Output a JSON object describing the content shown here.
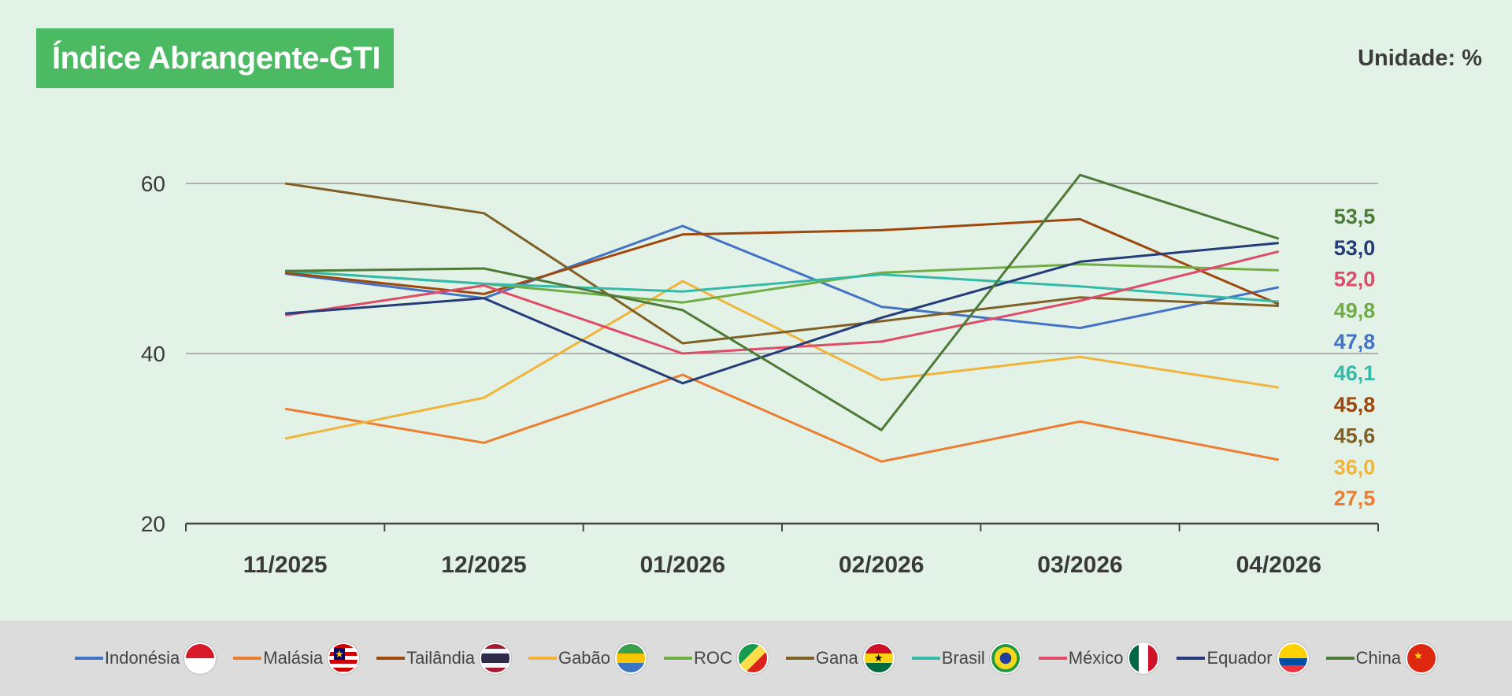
{
  "header": {
    "title": "Índice Abrangente-GTI",
    "unit": "Unidade: %"
  },
  "colors": {
    "title_bg": "#4cba62",
    "background": "#e3f2e6",
    "legend_bg": "#dcdcdc"
  },
  "chart_data": {
    "type": "line",
    "categories": [
      "11/2025",
      "12/2025",
      "01/2026",
      "02/2026",
      "03/2026",
      "04/2026"
    ],
    "ylim": [
      20,
      60
    ],
    "yticks": [
      20,
      40,
      60
    ],
    "grid": true,
    "legend_position": "bottom",
    "series": [
      {
        "name": "Indonésia",
        "color": "#4472c4",
        "values": [
          49.4,
          46.5,
          55.0,
          45.5,
          43.0,
          47.8
        ],
        "end_label": "47,8",
        "flag": "indonesia-flag"
      },
      {
        "name": "Malásia",
        "color": "#ed7d31",
        "values": [
          33.5,
          29.5,
          37.5,
          27.3,
          32.0,
          27.5
        ],
        "end_label": "27,5",
        "flag": "malaysia-flag"
      },
      {
        "name": "Tailândia",
        "color": "#9e480e",
        "values": [
          49.5,
          47.0,
          54.0,
          54.5,
          55.8,
          45.8
        ],
        "end_label": "45,8",
        "flag": "thailand-flag"
      },
      {
        "name": "Gabão",
        "color": "#f0b43c",
        "values": [
          30.0,
          34.8,
          48.5,
          36.9,
          39.6,
          36.0
        ],
        "end_label": "36,0",
        "flag": "gabon-flag"
      },
      {
        "name": "ROC",
        "color": "#70ad47",
        "values": [
          49.7,
          48.2,
          46.0,
          49.5,
          50.5,
          49.8
        ],
        "end_label": "49,8",
        "flag": "roc-flag"
      },
      {
        "name": "Gana",
        "color": "#7f6128",
        "values": [
          60.0,
          56.5,
          41.2,
          43.8,
          46.6,
          45.6
        ],
        "end_label": "45,6",
        "flag": "ghana-flag"
      },
      {
        "name": "Brasil",
        "color": "#35b9a8",
        "values": [
          49.7,
          48.2,
          47.3,
          49.3,
          47.9,
          46.1
        ],
        "end_label": "46,1",
        "flag": "brazil-flag"
      },
      {
        "name": "México",
        "color": "#dd4c68",
        "values": [
          44.5,
          48.0,
          40.0,
          41.4,
          46.2,
          52.0
        ],
        "end_label": "52,0",
        "flag": "mexico-flag"
      },
      {
        "name": "Equador",
        "color": "#263b7a",
        "values": [
          44.7,
          46.5,
          36.5,
          44.2,
          50.8,
          53.0
        ],
        "end_label": "53,0",
        "flag": "ecuador-flag"
      },
      {
        "name": "China",
        "color": "#4e7a38",
        "values": [
          49.7,
          50.0,
          45.1,
          31.0,
          61.0,
          53.5
        ],
        "end_label": "53,5",
        "flag": "china-flag"
      }
    ],
    "label_order": [
      "China",
      "Equador",
      "México",
      "ROC",
      "Indonésia",
      "Brasil",
      "Tailândia",
      "Gana",
      "Gabão",
      "Malásia"
    ]
  }
}
